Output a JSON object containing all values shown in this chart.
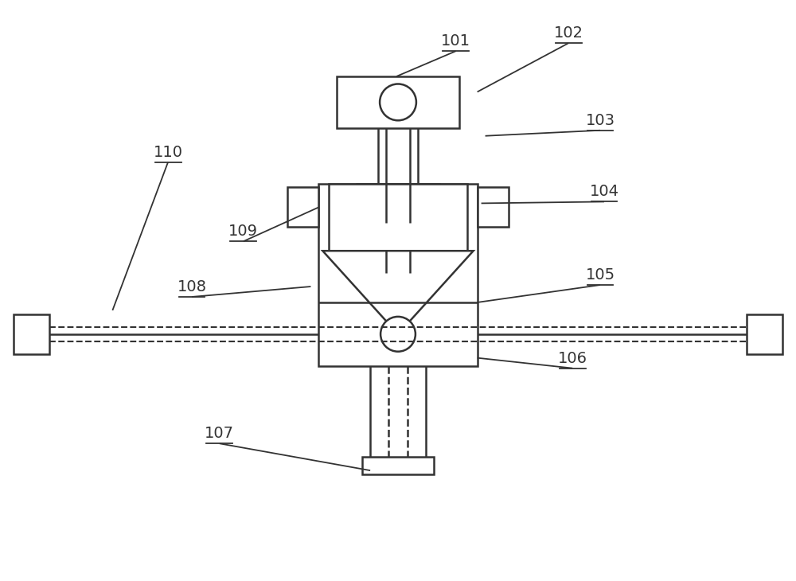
{
  "bg_color": "#ffffff",
  "line_color": "#333333",
  "line_width": 1.8,
  "label_color": "#333333",
  "label_fontsize": 14,
  "dpi": 100,
  "figsize": [
    10.0,
    7.3
  ]
}
